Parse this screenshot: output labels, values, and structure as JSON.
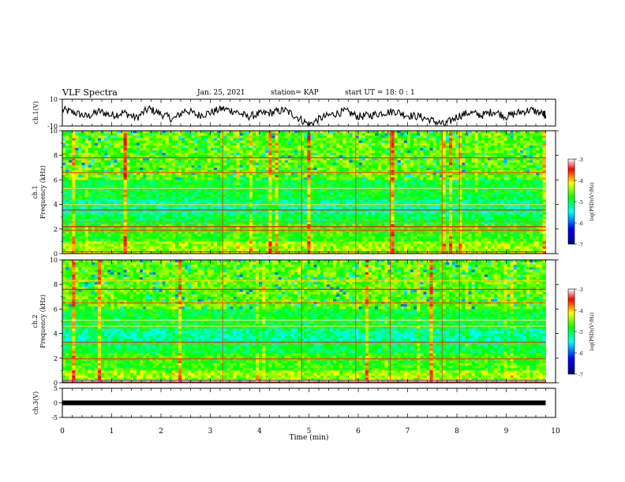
{
  "header": {
    "title": "VLF Spectra",
    "date": "Jan. 25, 2021",
    "station": "station= KAP",
    "start_ut": "start  UT =   18: 0  : 1"
  },
  "chart_data": [
    {
      "type": "line",
      "panel": "ch1-waveform",
      "ylabel": "ch.1(V)",
      "ylim": [
        -10,
        10
      ],
      "yticks": [
        "10",
        "-10"
      ],
      "xlim": [
        0,
        10
      ],
      "x": [
        0,
        0.25,
        0.5,
        0.75,
        1.0,
        1.25,
        1.5,
        1.75,
        2.0,
        2.25,
        2.5,
        2.75,
        3.0,
        3.25,
        3.5,
        3.75,
        4.0,
        4.25,
        4.5,
        4.75,
        5.0,
        5.25,
        5.5,
        5.75,
        6.0,
        6.25,
        6.5,
        6.75,
        7.0,
        7.25,
        7.5,
        7.75,
        8.0,
        8.25,
        8.5,
        8.75,
        9.0,
        9.25,
        9.5,
        9.75,
        9.8
      ],
      "values": [
        2,
        0,
        -3,
        1,
        -2,
        0,
        -4,
        3,
        -1,
        -5,
        2,
        -2,
        0,
        3,
        1,
        -3,
        -1,
        0,
        2,
        -3,
        -9,
        -4,
        -1,
        1,
        -3,
        -2,
        0,
        1,
        -2,
        -3,
        -6,
        -9,
        -3,
        0,
        -2,
        1,
        -3,
        0,
        2,
        -1,
        -2
      ]
    },
    {
      "type": "heatmap",
      "panel": "ch1-spectrogram",
      "ylabel": "ch.1\nFrequency (kHz)",
      "xlim": [
        0,
        10
      ],
      "ylim": [
        0,
        10
      ],
      "yticks": [
        "0",
        "2",
        "4",
        "6",
        "8",
        "10"
      ],
      "colorbar": {
        "label": "log(PSD)(V²/Hz)",
        "range": [
          -7,
          -3
        ],
        "ticks": [
          "-3",
          "-4",
          "-5",
          "-6",
          "-7"
        ]
      }
    },
    {
      "type": "heatmap",
      "panel": "ch2-spectrogram",
      "ylabel": "ch.2\nFrequency (kHz)",
      "xlim": [
        0,
        10
      ],
      "ylim": [
        0,
        10
      ],
      "yticks": [
        "0",
        "2",
        "4",
        "6",
        "8",
        "10"
      ],
      "colorbar": {
        "label": "log(PSD)(V²/Hz)",
        "range": [
          -7,
          -3
        ],
        "ticks": [
          "-3",
          "-4",
          "-5",
          "-6",
          "-7"
        ]
      }
    },
    {
      "type": "line",
      "panel": "ch3-waveform",
      "ylabel": "ch.3(V)",
      "ylim": [
        -5,
        5
      ],
      "yticks": [
        "5",
        "0",
        "-5"
      ],
      "xlim": [
        0,
        10
      ],
      "x": [
        0,
        9.8
      ],
      "values": [
        0,
        0
      ]
    }
  ],
  "xaxis": {
    "label": "Time  (min)",
    "ticks": [
      "0",
      "1",
      "2",
      "3",
      "4",
      "5",
      "6",
      "7",
      "8",
      "9",
      "10"
    ]
  },
  "colors": {
    "axis": "#000000",
    "trace": "#000000",
    "colormap": [
      "#00007a",
      "#0000ff",
      "#00ffff",
      "#00ff00",
      "#ffff00",
      "#ff0000",
      "#ffffff"
    ]
  }
}
